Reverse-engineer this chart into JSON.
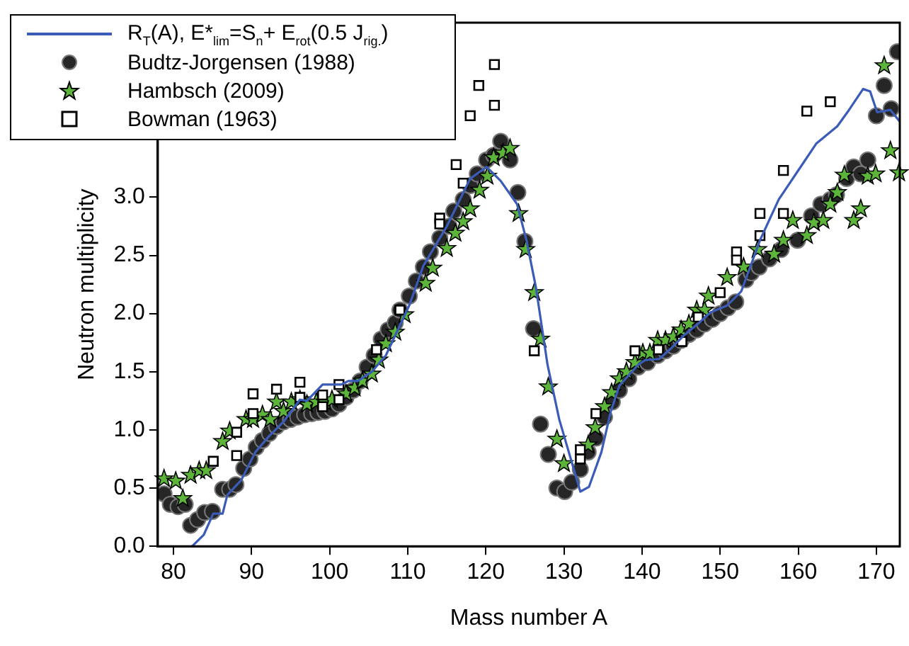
{
  "chart_data": {
    "type": "scatter",
    "xlabel": "Mass number A",
    "ylabel": "Neutron multiplicity",
    "xlim": [
      78,
      173
    ],
    "ylim": [
      0,
      4.5
    ],
    "xticks": [
      80,
      90,
      100,
      110,
      120,
      130,
      140,
      150,
      160,
      170
    ],
    "yticks": [
      {
        "value": 0,
        "label": "0.0"
      },
      {
        "value": 0.5,
        "label": "0.5"
      },
      {
        "value": 1,
        "label": "1.0"
      },
      {
        "value": 1.5,
        "label": "1.5"
      },
      {
        "value": 2,
        "label": "2.0"
      },
      {
        "value": 2.5,
        "label": "2.5"
      },
      {
        "value": 3,
        "label": "3.0"
      }
    ],
    "grid": false,
    "legend": "top left",
    "series": [
      {
        "name": "R$_{T}$(A), E*$_{lim}$=S$_{n}$+ E$_{rot}$(0.5 J$_{rig.}$)",
        "type": "line",
        "marker": "none",
        "color": "#3a5bb8",
        "x": [
          82.4,
          83.9,
          85.1,
          86.3,
          86.9,
          88.7,
          90.5,
          92.3,
          94.1,
          96.2,
          97.1,
          99.1,
          101.5,
          102.4,
          103.6,
          105.4,
          107.2,
          110.2,
          112.0,
          115.0,
          118.0,
          120.1,
          121.9,
          124.0,
          125.2,
          126.4,
          127.9,
          129.4,
          132.1,
          133.2,
          134.8,
          136.0,
          137.1,
          139.5,
          140.4,
          142.2,
          143.7,
          145.5,
          147.3,
          148.8,
          150.9,
          152.7,
          155.1,
          157.5,
          159.9,
          162.3,
          165.0,
          166.5,
          168.3,
          169.2,
          170.1,
          171.8,
          173.0
        ],
        "values": [
          0,
          0.1,
          0.28,
          0.28,
          0.44,
          0.57,
          0.81,
          0.95,
          1.07,
          1.26,
          1.25,
          1.39,
          1.39,
          1.42,
          1.42,
          1.5,
          1.64,
          2.07,
          2.41,
          2.75,
          3.16,
          3.26,
          3.14,
          2.94,
          2.63,
          2.23,
          1.56,
          1.09,
          0.47,
          0.51,
          0.81,
          1.16,
          1.38,
          1.56,
          1.6,
          1.61,
          1.7,
          1.82,
          1.92,
          2.01,
          2.07,
          2.19,
          2.63,
          2.98,
          3.22,
          3.46,
          3.61,
          3.75,
          3.93,
          3.91,
          3.73,
          3.75,
          3.65
        ]
      },
      {
        "name": "Budtz-Jorgensen (1988)",
        "type": "scatter",
        "marker": "circle",
        "color": "#262626",
        "x": [
          78.8,
          79.6,
          80.6,
          81.5,
          82.2,
          83.1,
          84.0,
          85.0,
          86.3,
          87.2,
          88.0,
          89.0,
          89.8,
          90.6,
          91.4,
          92.3,
          93.2,
          94.1,
          95.0,
          95.9,
          96.8,
          97.7,
          98.5,
          99.4,
          100.3,
          101.2,
          102.1,
          103.0,
          103.9,
          104.8,
          105.7,
          106.6,
          107.5,
          108.4,
          109.0,
          110.2,
          111.1,
          112.0,
          112.9,
          114.1,
          115.3,
          115.9,
          117.1,
          118.0,
          118.9,
          120.1,
          121.0,
          121.9,
          123.1,
          124.1,
          125.0,
          126.1,
          127.0,
          128.0,
          129.1,
          130.1,
          131.0,
          132.1,
          133.1,
          134.1,
          135.2,
          136.2,
          137.1,
          138.3,
          139.5,
          140.7,
          142,
          143,
          144,
          145,
          146,
          147,
          148,
          149,
          150,
          151,
          152,
          153.3,
          154,
          155,
          156.3,
          157.8,
          159.9,
          161.7,
          162.9,
          164.1,
          164.9,
          166.2,
          167.1,
          168.0,
          168.9,
          170.0,
          171.0,
          171.9,
          172.7
        ],
        "values": [
          0.45,
          0.36,
          0.34,
          0.36,
          0.18,
          0.23,
          0.29,
          0.3,
          0.49,
          0.49,
          0.53,
          0.67,
          0.75,
          0.85,
          0.91,
          0.97,
          1.03,
          1.07,
          1.09,
          1.11,
          1.13,
          1.14,
          1.15,
          1.16,
          1.18,
          1.22,
          1.28,
          1.34,
          1.42,
          1.54,
          1.64,
          1.78,
          1.86,
          1.92,
          2.03,
          2.15,
          2.28,
          2.4,
          2.53,
          2.65,
          2.75,
          2.88,
          2.98,
          3.1,
          3.2,
          3.32,
          3.36,
          3.48,
          3.32,
          3.04,
          2.62,
          1.87,
          1.05,
          0.79,
          0.5,
          0.47,
          0.55,
          0.66,
          0.81,
          0.93,
          1.11,
          1.24,
          1.34,
          1.44,
          1.54,
          1.58,
          1.64,
          1.68,
          1.72,
          1.77,
          1.82,
          1.86,
          1.91,
          1.95,
          2.0,
          2.05,
          2.1,
          2.29,
          2.35,
          2.4,
          2.47,
          2.55,
          2.63,
          2.84,
          2.94,
          2.98,
          3.02,
          3.16,
          3.26,
          3.2,
          3.32,
          3.7,
          3.96,
          3.76,
          4.25
        ]
      },
      {
        "name": "Hambsch (2009)",
        "type": "scatter",
        "marker": "star",
        "color": "#5cb53a",
        "x": [
          78.8,
          80.3,
          81.2,
          82.2,
          83.3,
          84.2,
          86.3,
          87.2,
          89.3,
          90.2,
          91.4,
          92.4,
          93.2,
          94.1,
          95.1,
          96.2,
          97.1,
          98.3,
          99.4,
          100.3,
          102.1,
          103.2,
          104.2,
          105.4,
          106.3,
          107.2,
          108.4,
          109.6,
          112.3,
          113.2,
          115.0,
          116.1,
          117.1,
          118.0,
          119.2,
          120.2,
          121.0,
          122.2,
          123.1,
          124.2,
          125.1,
          126.2,
          127.0,
          128.0,
          129.1,
          130.0,
          133.1,
          134.0,
          135.2,
          136.1,
          137.1,
          138.0,
          139.1,
          140.1,
          141.0,
          142.0,
          143.0,
          144.0,
          145.0,
          146.0,
          147.0,
          148.0,
          148.5,
          150.9,
          153.0,
          154.8,
          156.9,
          158.1,
          159.3,
          161.1,
          162.0,
          163.2,
          164.1,
          165.0,
          165.9,
          167.1,
          168.0,
          168.9,
          169.9,
          171.0,
          171.8,
          172.9
        ],
        "values": [
          0.58,
          0.56,
          0.41,
          0.61,
          0.65,
          0.65,
          0.9,
          0.99,
          1.09,
          1.09,
          1.13,
          1.09,
          1.24,
          1.16,
          1.24,
          1.26,
          1.22,
          1.24,
          1.24,
          1.26,
          1.31,
          1.36,
          1.42,
          1.48,
          1.6,
          1.74,
          1.84,
          1.99,
          2.26,
          2.39,
          2.56,
          2.69,
          2.79,
          2.9,
          3.06,
          3.18,
          3.34,
          3.38,
          3.42,
          2.86,
          2.55,
          2.18,
          1.78,
          1.37,
          0.92,
          0.71,
          0.87,
          1.02,
          1.2,
          1.32,
          1.44,
          1.5,
          1.58,
          1.66,
          1.66,
          1.77,
          1.77,
          1.8,
          1.86,
          1.91,
          2.03,
          2.03,
          2.15,
          2.31,
          2.4,
          2.55,
          2.51,
          2.63,
          2.8,
          2.67,
          2.78,
          2.8,
          2.94,
          3.04,
          3.19,
          2.8,
          2.9,
          3.18,
          3.2,
          4.13,
          3.4,
          3.21
        ]
      },
      {
        "name": "Bowman (1963)",
        "type": "scatter",
        "marker": "square",
        "color": "#000000",
        "x": [
          85.1,
          88.1,
          88.1,
          90.2,
          90.2,
          93.2,
          96.2,
          96.2,
          99.1,
          99.1,
          101.2,
          101.2,
          106.0,
          109.0,
          114.1,
          114.1,
          116.2,
          117.1,
          118.0,
          119.1,
          121.1,
          121.1,
          126.2,
          132.1,
          132.1,
          134.1,
          139.1,
          142.1,
          145.1,
          147.2,
          150.0,
          152.1,
          152.1,
          155.1,
          155.1,
          158.1,
          158.1,
          161.1,
          164.1
        ],
        "values": [
          0.73,
          0.98,
          0.78,
          1.31,
          1.14,
          1.35,
          1.41,
          1.28,
          1.3,
          1.2,
          1.26,
          1.39,
          1.69,
          2.03,
          2.82,
          2.77,
          3.28,
          3.12,
          3.7,
          3.96,
          4.14,
          3.79,
          1.68,
          0.83,
          0.75,
          1.14,
          1.68,
          1.69,
          1.76,
          1.97,
          2.18,
          2.53,
          2.46,
          2.86,
          2.67,
          2.86,
          3.23,
          3.74,
          3.82
        ]
      }
    ]
  }
}
